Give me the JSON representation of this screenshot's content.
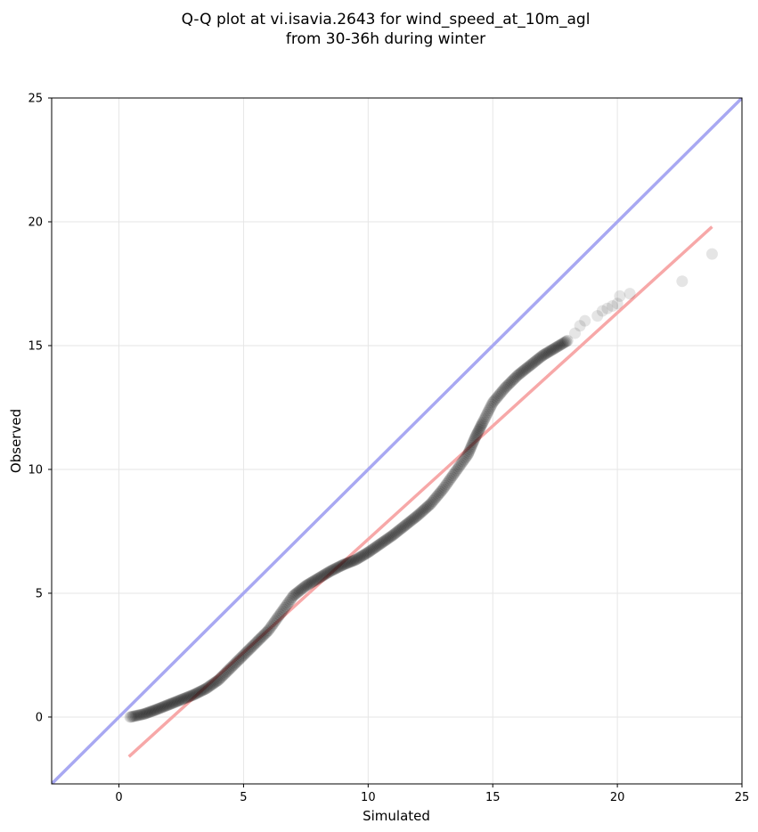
{
  "chart_data": {
    "type": "scatter",
    "title": [
      "Q-Q plot at vi.isavia.2643 for wind_speed_at_10m_agl",
      "from 30-36h during winter"
    ],
    "xlabel": "Simulated",
    "ylabel": "Observed",
    "xlim": [
      -2.7,
      25
    ],
    "ylim": [
      -2.7,
      25
    ],
    "xticks": [
      "0",
      "5",
      "10",
      "15",
      "20",
      "25"
    ],
    "yticks": [
      "0",
      "5",
      "10",
      "15",
      "20",
      "25"
    ],
    "grid": true,
    "colors": {
      "points": "#000000",
      "identity_line": "#a8a8f2",
      "fit_line": "#f7a8a8",
      "grid": "#e6e6e6"
    },
    "identity_line": {
      "x": [
        -2.7,
        25
      ],
      "y": [
        -2.7,
        25
      ]
    },
    "fit_line": {
      "x": [
        0.4,
        23.8
      ],
      "y": [
        -1.6,
        19.8
      ]
    },
    "quantile_curve": {
      "x": [
        0.45,
        1.0,
        1.5,
        2.0,
        2.5,
        3.0,
        3.5,
        4.0,
        4.5,
        5.0,
        5.5,
        6.0,
        6.5,
        7.0,
        7.5,
        8.0,
        8.5,
        9.0,
        9.5,
        10.0,
        10.5,
        11.0,
        11.5,
        12.0,
        12.5,
        13.0,
        13.5,
        14.0,
        14.3,
        14.6,
        15.0,
        15.5,
        16.0,
        16.5,
        17.0,
        17.5,
        18.0
      ],
      "y": [
        0.0,
        0.12,
        0.3,
        0.5,
        0.7,
        0.9,
        1.15,
        1.5,
        2.0,
        2.5,
        3.0,
        3.5,
        4.2,
        4.9,
        5.3,
        5.6,
        5.9,
        6.15,
        6.35,
        6.65,
        7.0,
        7.35,
        7.75,
        8.15,
        8.6,
        9.2,
        9.9,
        10.6,
        11.3,
        11.9,
        12.7,
        13.3,
        13.8,
        14.2,
        14.6,
        14.9,
        15.2
      ]
    },
    "tail_points": {
      "x": [
        18.3,
        18.5,
        18.7,
        19.2,
        19.4,
        19.6,
        19.8,
        20.0,
        20.1,
        20.5,
        22.6,
        23.8
      ],
      "y": [
        15.5,
        15.8,
        16.0,
        16.2,
        16.4,
        16.5,
        16.6,
        16.7,
        17.0,
        17.1,
        17.6,
        18.7
      ]
    }
  }
}
